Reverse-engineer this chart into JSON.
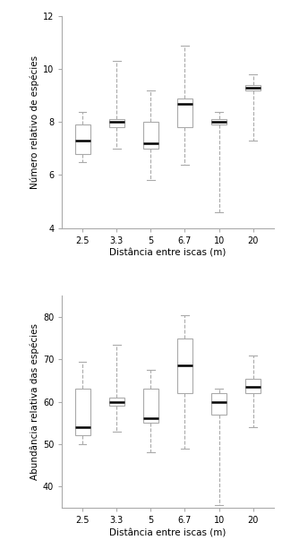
{
  "categories": [
    "2.5",
    "3.3",
    "5",
    "6.7",
    "10",
    "20"
  ],
  "top_plot": {
    "ylabel": "Número relativo de espécies",
    "xlabel": "Distância entre iscas (m)",
    "ylim": [
      4,
      12
    ],
    "yticks": [
      4,
      6,
      8,
      10,
      12
    ],
    "boxes": [
      {
        "whislo": 6.5,
        "q1": 6.8,
        "med": 7.3,
        "q3": 7.9,
        "whishi": 8.4
      },
      {
        "whislo": 7.0,
        "q1": 7.8,
        "med": 8.0,
        "q3": 8.1,
        "whishi": 10.3
      },
      {
        "whislo": 5.8,
        "q1": 7.0,
        "med": 7.2,
        "q3": 8.0,
        "whishi": 9.2
      },
      {
        "whislo": 6.4,
        "q1": 7.8,
        "med": 8.7,
        "q3": 8.9,
        "whishi": 10.9
      },
      {
        "whislo": 4.6,
        "q1": 7.9,
        "med": 8.0,
        "q3": 8.1,
        "whishi": 8.4
      },
      {
        "whislo": 7.3,
        "q1": 9.2,
        "med": 9.3,
        "q3": 9.4,
        "whishi": 9.8
      }
    ]
  },
  "bottom_plot": {
    "ylabel": "Abundância relativa das espécies",
    "xlabel": "Distância entre iscas (m)",
    "ylim": [
      35,
      85
    ],
    "yticks": [
      40,
      50,
      60,
      70,
      80
    ],
    "boxes": [
      {
        "whislo": 50.0,
        "q1": 52.0,
        "med": 54.0,
        "q3": 63.0,
        "whishi": 69.5
      },
      {
        "whislo": 53.0,
        "q1": 59.0,
        "med": 60.0,
        "q3": 61.0,
        "whishi": 73.5
      },
      {
        "whislo": 48.0,
        "q1": 55.0,
        "med": 56.0,
        "q3": 63.0,
        "whishi": 67.5
      },
      {
        "whislo": 49.0,
        "q1": 62.0,
        "med": 68.5,
        "q3": 75.0,
        "whishi": 80.5
      },
      {
        "whislo": 35.5,
        "q1": 57.0,
        "med": 60.0,
        "q3": 62.0,
        "whishi": 63.0
      },
      {
        "whislo": 54.0,
        "q1": 62.0,
        "med": 63.5,
        "q3": 65.5,
        "whishi": 71.0
      }
    ]
  },
  "box_color": "#ffffff",
  "median_color": "#000000",
  "whisker_color": "#aaaaaa",
  "box_edge_color": "#aaaaaa",
  "background_color": "#ffffff",
  "fontsize": 7,
  "label_fontsize": 7.5
}
